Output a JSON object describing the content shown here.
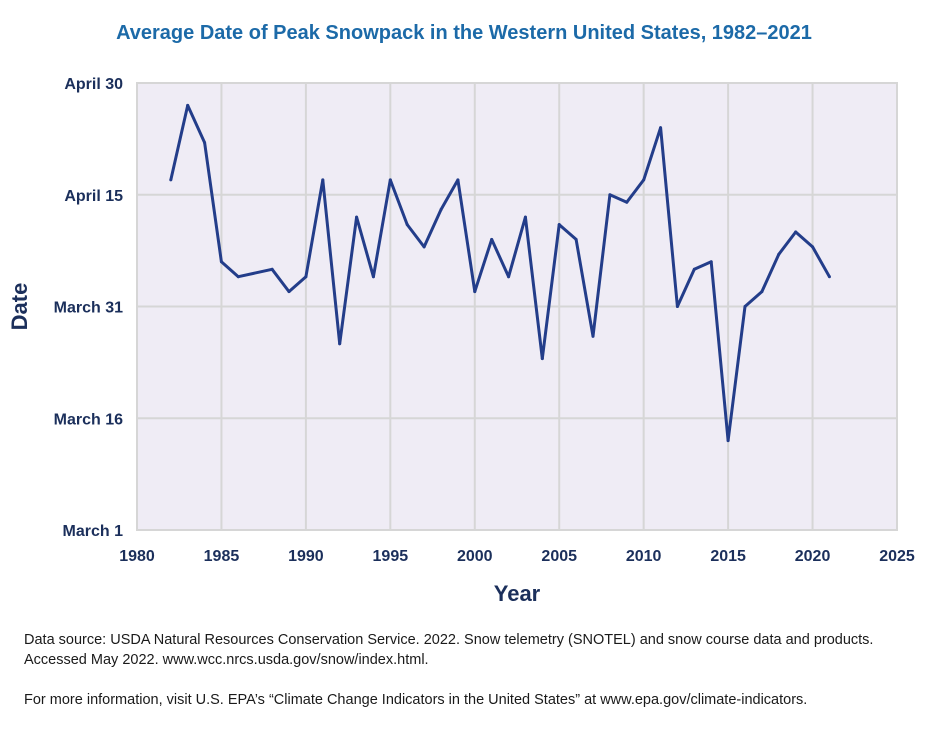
{
  "chart_data": {
    "type": "line",
    "title": "Average Date of Peak Snowpack in the Western United States, 1982–2021",
    "xlabel": "Year",
    "ylabel": "Date",
    "xlim": [
      1980,
      2025
    ],
    "xticks": [
      1980,
      1985,
      1990,
      1995,
      2000,
      2005,
      2010,
      2015,
      2020,
      2025
    ],
    "ylim": [
      "March 1",
      "April 30"
    ],
    "yticks": [
      "March 1",
      "March 16",
      "March 31",
      "April 15",
      "April 30"
    ],
    "grid": true,
    "colors": {
      "line": "#233d8a",
      "plot_bg": "#efecf5",
      "grid": "#d6d6d6",
      "title": "#1c6aa8",
      "axis_text": "#1b2f5b"
    },
    "series": [
      {
        "x": [
          1982,
          1983,
          1984,
          1985,
          1986,
          1988,
          1989,
          1990,
          1991,
          1992,
          1993,
          1994,
          1995,
          1996,
          1997,
          1998,
          1999,
          2000,
          2001,
          2002,
          2003,
          2004,
          2005,
          2006,
          2007,
          2008,
          2009,
          2010,
          2011,
          2012,
          2013,
          2014,
          2015,
          2016,
          2017,
          2018,
          2019,
          2020,
          2021
        ],
        "y": [
          "April 17",
          "April 27",
          "April 22",
          "April 6",
          "April 4",
          "April 5",
          "April 2",
          "April 4",
          "April 17",
          "March 26",
          "April 12",
          "April 4",
          "April 17",
          "April 11",
          "April 8",
          "April 13",
          "April 17",
          "April 2",
          "April 9",
          "April 4",
          "April 12",
          "March 24",
          "April 11",
          "April 9",
          "March 27",
          "April 15",
          "April 14",
          "April 17",
          "April 24",
          "March 31",
          "April 5",
          "April 6",
          "March 13",
          "March 31",
          "April 2",
          "April 7",
          "April 10",
          "April 8",
          "April 4"
        ]
      }
    ]
  },
  "footnotes": {
    "source": "Data source: USDA Natural Resources Conservation Service. 2022. Snow telemetry (SNOTEL) and snow course data and products. Accessed May 2022. www.wcc.nrcs.usda.gov/snow/index.html.",
    "info": "For more information, visit U.S. EPA’s “Climate Change Indicators in the United States” at www.epa.gov/climate-indicators."
  }
}
